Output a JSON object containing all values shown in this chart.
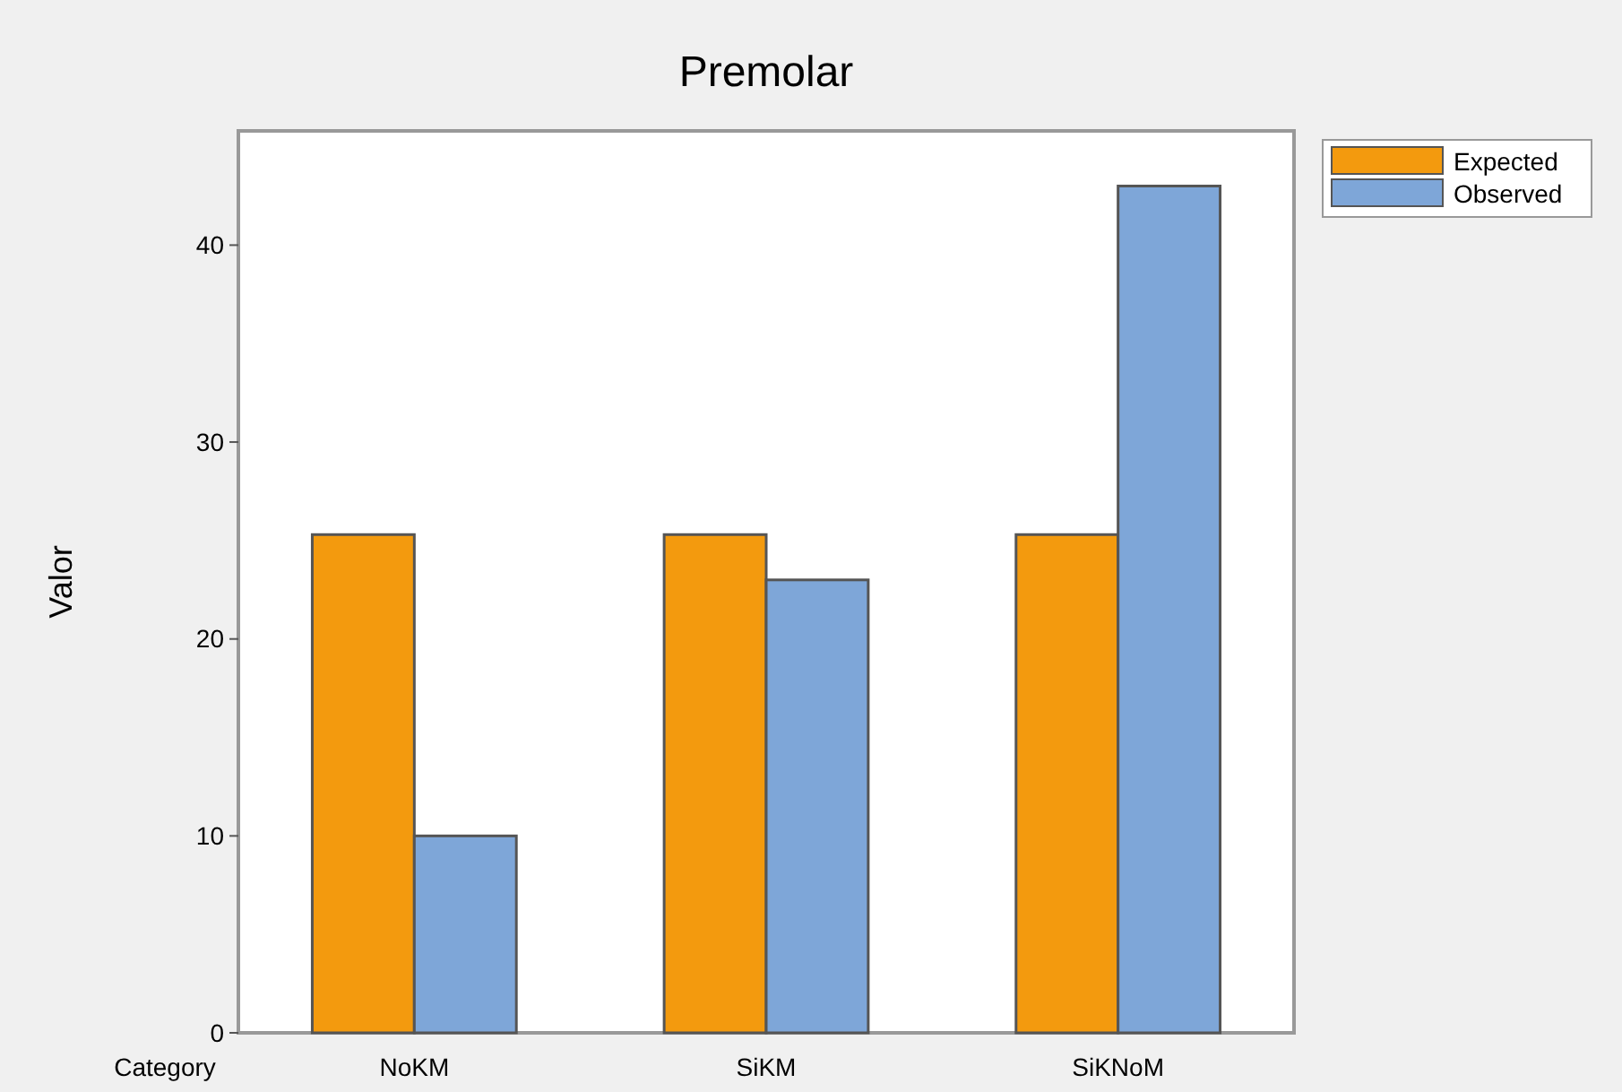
{
  "chart_data": {
    "type": "bar",
    "title": "Premolar",
    "xlabel": "Category",
    "ylabel": "Valor",
    "categories": [
      "NoKM",
      "SiKM",
      "SiKNoM"
    ],
    "series": [
      {
        "name": "Expected",
        "color": "#f39a0e",
        "values": [
          25.3,
          25.3,
          25.3
        ]
      },
      {
        "name": "Observed",
        "color": "#7ea6d8",
        "values": [
          10,
          23,
          43
        ]
      }
    ],
    "ylim": [
      0,
      45.8
    ],
    "yticks": [
      0,
      10,
      20,
      30,
      40
    ],
    "grid": false,
    "legend": "top right"
  }
}
